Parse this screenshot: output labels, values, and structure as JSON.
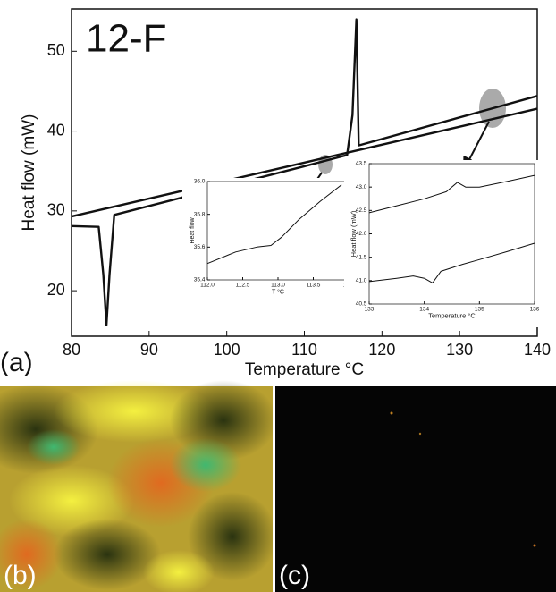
{
  "chart_data": [
    {
      "type": "line",
      "annotation": "12-F",
      "xlabel": "Temperature °C",
      "ylabel": "Heat flow (mW)",
      "xlim": [
        80,
        140
      ],
      "xticks": [
        80,
        90,
        100,
        110,
        120,
        130,
        140
      ],
      "ylim": [
        14.3,
        55.3
      ],
      "yticks": [
        20,
        30,
        40,
        50
      ],
      "series": [
        {
          "color": "#111111",
          "x": [
            80,
            140
          ],
          "values": [
            29.3,
            42.8
          ]
        },
        {
          "color": "#111111",
          "x": [
            80,
            83.5,
            84.1,
            84.5,
            84.9,
            85.5,
            110,
            115.5,
            116.2,
            116.7,
            117,
            140
          ],
          "values": [
            28.1,
            28,
            22,
            15.7,
            22,
            29.5,
            35.6,
            37,
            42,
            54,
            38.2,
            44.4
          ]
        }
      ]
    },
    {
      "type": "line",
      "xlabel": "T °C",
      "ylabel": "Heat flow",
      "xlim": [
        112,
        114
      ],
      "xticks": [
        {
          "value": 112,
          "label": "112.0"
        },
        112.5,
        {
          "value": 113,
          "label": "113.0"
        },
        113.5,
        {
          "value": 114,
          "label": "114."
        }
      ],
      "ylim": [
        35.4,
        36
      ],
      "yticks": [
        35.4,
        35.6,
        35.8,
        {
          "value": 36,
          "label": "36.0"
        }
      ],
      "series": [
        {
          "color": "#111111",
          "x": [
            112,
            112.4,
            112.7,
            112.9,
            113.05,
            113.3,
            113.6,
            113.9
          ],
          "values": [
            35.5,
            35.57,
            35.6,
            35.61,
            35.66,
            35.77,
            35.88,
            35.98
          ]
        }
      ]
    },
    {
      "type": "line",
      "xlabel": "Temperature °C",
      "ylabel": "Heat flow (mW)",
      "xlim": [
        133,
        136
      ],
      "xticks": [
        133,
        134,
        135,
        136
      ],
      "ylim": [
        40.5,
        43.5
      ],
      "yticks": [
        40.5,
        {
          "value": 41,
          "label": "41.0"
        },
        41.5,
        {
          "value": 42,
          "label": "42.0"
        },
        42.5,
        {
          "value": 43,
          "label": "43.0"
        },
        43.5
      ],
      "series": [
        {
          "color": "#111111",
          "x": [
            133,
            133.5,
            134,
            134.4,
            134.6,
            134.75,
            135,
            135.5,
            136
          ],
          "values": [
            42.45,
            42.6,
            42.75,
            42.9,
            43.1,
            43,
            43,
            43.12,
            43.25
          ]
        },
        {
          "color": "#111111",
          "x": [
            133,
            133.5,
            133.8,
            134,
            134.15,
            134.3,
            134.7,
            135,
            135.5,
            136
          ],
          "values": [
            40.98,
            41.05,
            41.1,
            41.05,
            40.95,
            41.2,
            41.35,
            41.45,
            41.62,
            41.8
          ]
        }
      ]
    }
  ],
  "panels": [
    "(a)",
    "(b)",
    "(c)"
  ]
}
